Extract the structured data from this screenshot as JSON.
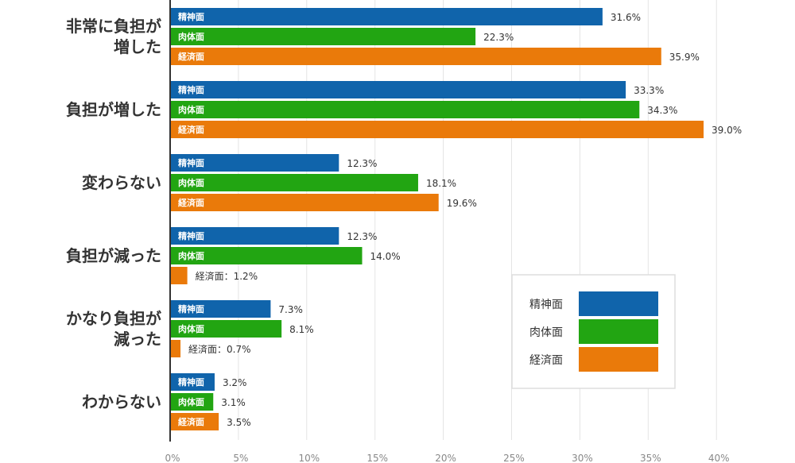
{
  "chart_data": {
    "type": "bar",
    "orientation": "horizontal",
    "categories": [
      "非常に負担が増した",
      "負担が増した",
      "変わらない",
      "負担が減った",
      "かなり負担が減った",
      "わからない"
    ],
    "category_lines": [
      [
        "非常に負担が",
        "増した"
      ],
      [
        "負担が増した"
      ],
      [
        "変わらない"
      ],
      [
        "負担が減った"
      ],
      [
        "かなり負担が",
        "減った"
      ],
      [
        "わからない"
      ]
    ],
    "series": [
      {
        "name": "精神面",
        "color": "#1064ab",
        "values": [
          31.6,
          33.3,
          12.3,
          12.3,
          7.3,
          3.2
        ]
      },
      {
        "name": "肉体面",
        "color": "#22a512",
        "values": [
          22.3,
          34.3,
          18.1,
          14.0,
          8.1,
          3.1
        ]
      },
      {
        "name": "経済面",
        "color": "#ea7a0a",
        "values": [
          35.9,
          39.0,
          19.6,
          1.2,
          0.7,
          3.5
        ]
      }
    ],
    "value_labels": [
      [
        "31.6%",
        "22.3%",
        "35.9%"
      ],
      [
        "33.3%",
        "34.3%",
        "39.0%"
      ],
      [
        "12.3%",
        "18.1%",
        "19.6%"
      ],
      [
        "12.3%",
        "14.0%",
        "経済面：1.2%"
      ],
      [
        "7.3%",
        "8.1%",
        "経済面：0.7%"
      ],
      [
        "3.2%",
        "3.1%",
        "3.5%"
      ]
    ],
    "xlim": [
      0,
      40
    ],
    "xticks": [
      "0%",
      "5%",
      "10%",
      "15%",
      "20%",
      "25%",
      "30%",
      "35%",
      "40%"
    ],
    "grid": true,
    "legend": {
      "position": "lower-right",
      "entries": [
        "精神面",
        "肉体面",
        "経済面"
      ]
    }
  }
}
